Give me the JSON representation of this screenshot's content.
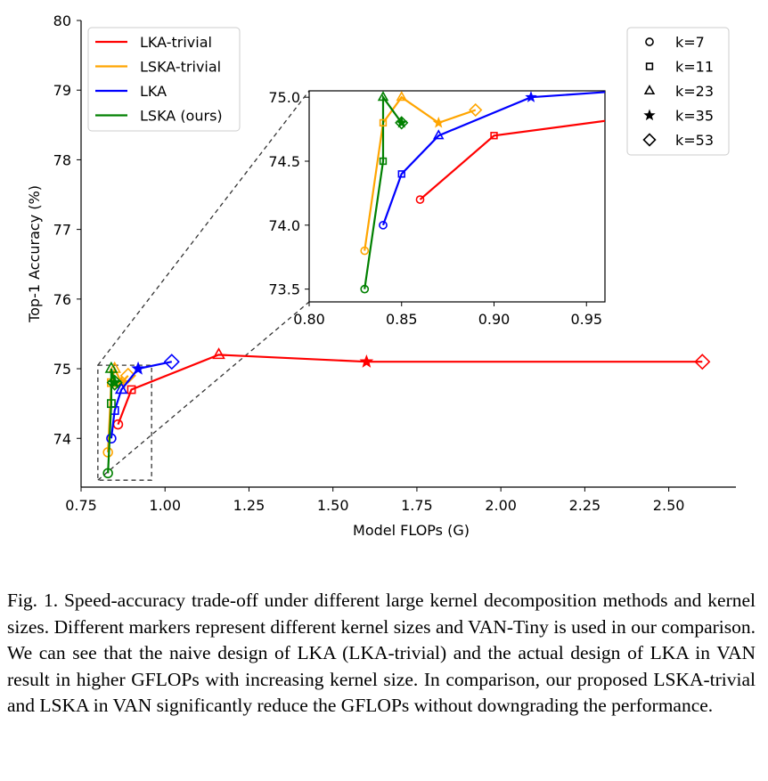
{
  "chart_data": {
    "type": "line",
    "xlabel": "Model FLOPs (G)",
    "ylabel": "Top-1 Accuracy (%)",
    "xlim": [
      0.75,
      2.7
    ],
    "ylim": [
      73.3,
      80.0
    ],
    "xticks": [
      "0.75",
      "1.00",
      "1.25",
      "1.50",
      "1.75",
      "2.00",
      "2.25",
      "2.50"
    ],
    "yticks": [
      "74",
      "75",
      "76",
      "77",
      "78",
      "79",
      "80"
    ],
    "series": [
      {
        "name": "LKA-trivial",
        "color": "#ff0000",
        "points": [
          {
            "x": 0.86,
            "y": 74.2,
            "k": "7"
          },
          {
            "x": 0.9,
            "y": 74.7,
            "k": "11"
          },
          {
            "x": 1.16,
            "y": 75.2,
            "k": "23"
          },
          {
            "x": 1.6,
            "y": 75.1,
            "k": "35"
          },
          {
            "x": 2.6,
            "y": 75.1,
            "k": "53"
          }
        ]
      },
      {
        "name": "LSKA-trivial",
        "color": "#ffa500",
        "points": [
          {
            "x": 0.83,
            "y": 73.8,
            "k": "7"
          },
          {
            "x": 0.84,
            "y": 74.8,
            "k": "11"
          },
          {
            "x": 0.85,
            "y": 75.0,
            "k": "23"
          },
          {
            "x": 0.87,
            "y": 74.8,
            "k": "35"
          },
          {
            "x": 0.89,
            "y": 74.9,
            "k": "53"
          }
        ]
      },
      {
        "name": "LKA",
        "color": "#0000ff",
        "points": [
          {
            "x": 0.84,
            "y": 74.0,
            "k": "7"
          },
          {
            "x": 0.85,
            "y": 74.4,
            "k": "11"
          },
          {
            "x": 0.87,
            "y": 74.7,
            "k": "23"
          },
          {
            "x": 0.92,
            "y": 75.0,
            "k": "35"
          },
          {
            "x": 1.02,
            "y": 75.1,
            "k": "53"
          }
        ]
      },
      {
        "name": "LSKA (ours)",
        "color": "#008000",
        "points": [
          {
            "x": 0.83,
            "y": 73.5,
            "k": "7"
          },
          {
            "x": 0.84,
            "y": 74.5,
            "k": "11"
          },
          {
            "x": 0.84,
            "y": 75.0,
            "k": "23"
          },
          {
            "x": 0.85,
            "y": 74.8,
            "k": "35"
          },
          {
            "x": 0.85,
            "y": 74.8,
            "k": "53"
          }
        ]
      }
    ],
    "markers": [
      {
        "label": "k=7",
        "shape": "circle"
      },
      {
        "label": "k=11",
        "shape": "square"
      },
      {
        "label": "k=23",
        "shape": "triangle"
      },
      {
        "label": "k=35",
        "shape": "star"
      },
      {
        "label": "k=53",
        "shape": "diamond"
      }
    ],
    "inset": {
      "xlim": [
        0.8,
        0.96
      ],
      "ylim": [
        73.4,
        75.05
      ],
      "xticks": [
        "0.80",
        "0.85",
        "0.90",
        "0.95"
      ],
      "yticks": [
        "73.5",
        "74.0",
        "74.5",
        "75.0"
      ]
    },
    "legend_placement": [
      "top-left",
      "top-right"
    ]
  },
  "caption": "Fig. 1.  Speed-accuracy trade-off under different large kernel decomposition methods and kernel sizes. Different markers represent different kernel sizes and VAN-Tiny is used in our comparison. We can see that the naive design of LKA (LKA-trivial) and the actual design of LKA in VAN result in higher GFLOPs with increasing kernel size. In comparison, our proposed LSKA-trivial and LSKA in VAN significantly reduce the GFLOPs without downgrading the performance."
}
